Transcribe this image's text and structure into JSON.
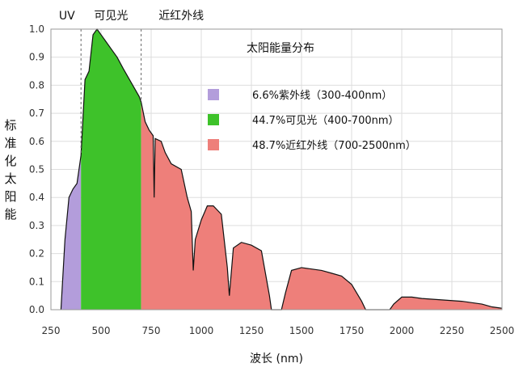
{
  "chart_data": {
    "type": "area",
    "title": "太阳能量分布",
    "xlabel": "波长 (nm)",
    "ylabel": "标准化太阳能",
    "xlim": [
      250,
      2500
    ],
    "ylim": [
      0,
      1.0
    ],
    "x_ticks": [
      250,
      500,
      750,
      1000,
      1250,
      1500,
      1750,
      2000,
      2250,
      2500
    ],
    "y_ticks": [
      "0.0",
      "0.1",
      "0.2",
      "0.3",
      "0.4",
      "0.5",
      "0.6",
      "0.7",
      "0.8",
      "0.9",
      "1.0"
    ],
    "grid": true,
    "region_labels": [
      {
        "text": "UV",
        "x": 330
      },
      {
        "text": "可见光",
        "x": 550
      },
      {
        "text": "近红外线",
        "x": 900
      }
    ],
    "boundaries": [
      400,
      700
    ],
    "series": [
      {
        "name": "6.6%紫外线（300-400nm）",
        "color": "#b39ddb",
        "range": [
          300,
          400
        ]
      },
      {
        "name": "44.7%可见光（400-700nm）",
        "color": "#3ec22a",
        "range": [
          400,
          700
        ]
      },
      {
        "name": "48.7%近红外线（700-2500nm）",
        "color": "#ee7f7a",
        "range": [
          700,
          2500
        ]
      }
    ],
    "spectrum": [
      [
        300,
        0.0
      ],
      [
        320,
        0.25
      ],
      [
        340,
        0.4
      ],
      [
        360,
        0.43
      ],
      [
        380,
        0.45
      ],
      [
        400,
        0.55
      ],
      [
        420,
        0.82
      ],
      [
        440,
        0.85
      ],
      [
        460,
        0.98
      ],
      [
        480,
        1.0
      ],
      [
        500,
        0.98
      ],
      [
        520,
        0.96
      ],
      [
        550,
        0.93
      ],
      [
        580,
        0.9
      ],
      [
        610,
        0.86
      ],
      [
        650,
        0.81
      ],
      [
        690,
        0.76
      ],
      [
        700,
        0.74
      ],
      [
        720,
        0.67
      ],
      [
        740,
        0.64
      ],
      [
        760,
        0.62
      ],
      [
        765,
        0.4
      ],
      [
        770,
        0.61
      ],
      [
        800,
        0.6
      ],
      [
        820,
        0.56
      ],
      [
        850,
        0.52
      ],
      [
        900,
        0.5
      ],
      [
        930,
        0.4
      ],
      [
        950,
        0.35
      ],
      [
        960,
        0.14
      ],
      [
        970,
        0.25
      ],
      [
        1000,
        0.32
      ],
      [
        1030,
        0.37
      ],
      [
        1060,
        0.37
      ],
      [
        1100,
        0.34
      ],
      [
        1130,
        0.15
      ],
      [
        1140,
        0.05
      ],
      [
        1160,
        0.22
      ],
      [
        1200,
        0.24
      ],
      [
        1250,
        0.23
      ],
      [
        1300,
        0.21
      ],
      [
        1340,
        0.05
      ],
      [
        1350,
        0.0
      ],
      [
        1400,
        0.0
      ],
      [
        1420,
        0.06
      ],
      [
        1450,
        0.14
      ],
      [
        1500,
        0.15
      ],
      [
        1550,
        0.145
      ],
      [
        1600,
        0.14
      ],
      [
        1650,
        0.13
      ],
      [
        1700,
        0.12
      ],
      [
        1750,
        0.09
      ],
      [
        1800,
        0.03
      ],
      [
        1820,
        0.0
      ],
      [
        1940,
        0.0
      ],
      [
        1960,
        0.02
      ],
      [
        2000,
        0.045
      ],
      [
        2050,
        0.045
      ],
      [
        2100,
        0.04
      ],
      [
        2200,
        0.035
      ],
      [
        2300,
        0.03
      ],
      [
        2400,
        0.02
      ],
      [
        2450,
        0.01
      ],
      [
        2500,
        0.005
      ]
    ]
  }
}
